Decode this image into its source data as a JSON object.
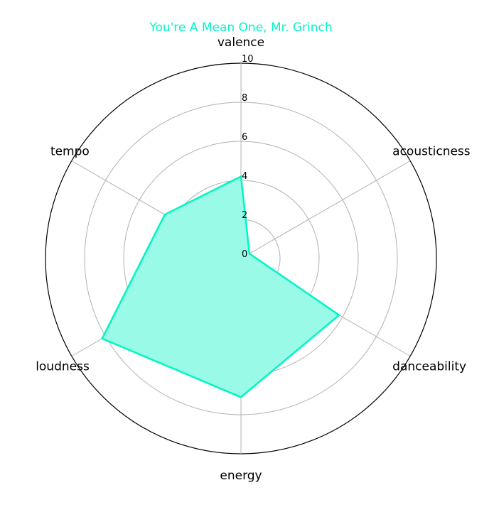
{
  "chart_data": {
    "type": "radar",
    "title": "You're A Mean One, Mr. Grinch",
    "axes": [
      "valence",
      "acousticness",
      "danceability",
      "energy",
      "loudness",
      "tempo"
    ],
    "series": [
      {
        "values": [
          4.2,
          0.5,
          5.8,
          7.1,
          8.2,
          4.5
        ]
      }
    ],
    "rlim": [
      0,
      10
    ],
    "rticks": [
      0,
      2,
      4,
      6,
      8,
      10
    ],
    "grid": true,
    "colors": {
      "line": "#00f5c4",
      "fill": "#99fbe7",
      "title": "#00f5c4",
      "grid": "#b0b0b0",
      "outer_ring": "#000000"
    }
  }
}
